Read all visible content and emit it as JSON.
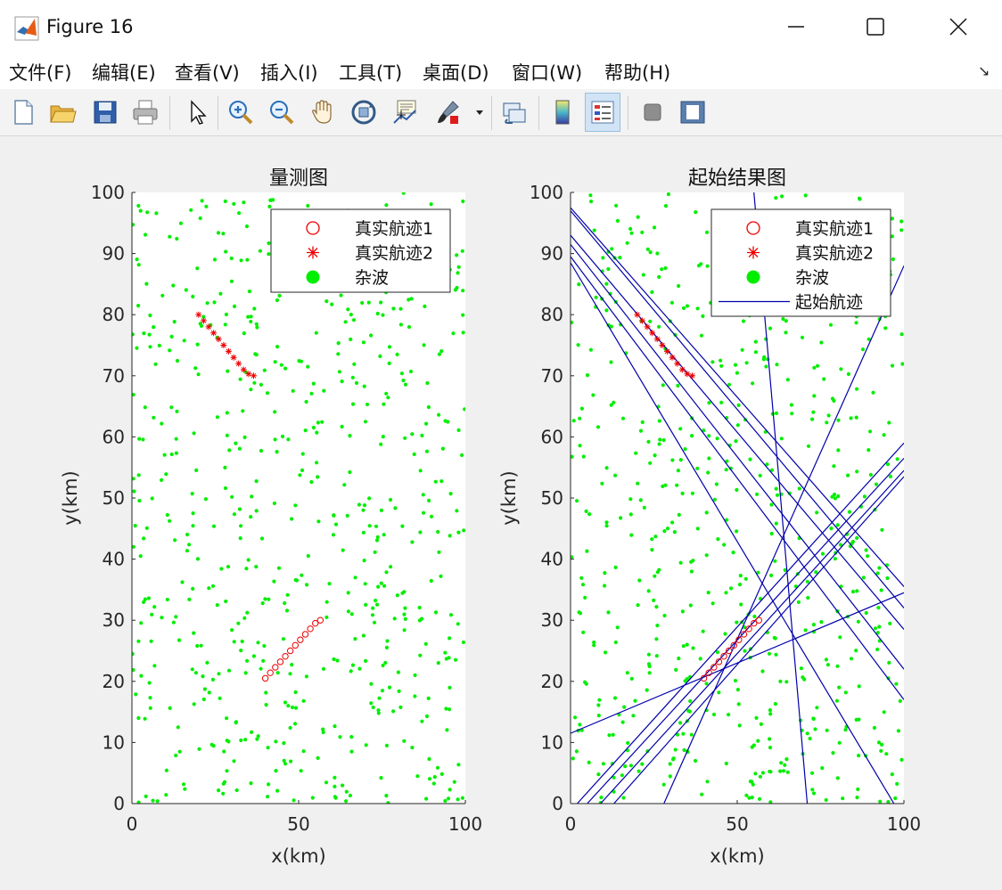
{
  "window": {
    "title": "Figure 16"
  },
  "menu": [
    "文件(F)",
    "编辑(E)",
    "查看(V)",
    "插入(I)",
    "工具(T)",
    "桌面(D)",
    "窗口(W)",
    "帮助(H)"
  ],
  "toolbar": {
    "buttons": [
      "new-figure-icon",
      "open-file-icon",
      "save-icon",
      "print-icon",
      "pointer-icon",
      "zoom-in-icon",
      "zoom-out-icon",
      "pan-icon",
      "rotate-3d-icon",
      "data-cursor-icon",
      "brush-icon",
      "link-plot-icon",
      "colorbar-icon",
      "legend-icon",
      "hide-plot-tools-icon",
      "show-plot-tools-icon"
    ],
    "active": "legend-icon"
  },
  "colors": {
    "clutter": "#00ee00",
    "track1": "#ee0000",
    "track2": "#ee0000",
    "start_track": "#0000aa"
  },
  "chart_data": [
    {
      "type": "scatter",
      "title": "量测图",
      "xlabel": "x(km)",
      "ylabel": "y(km)",
      "xlim": [
        0,
        100
      ],
      "ylim": [
        0,
        100
      ],
      "xticks": [
        "0",
        "50",
        "100"
      ],
      "yticks": [
        "0",
        "10",
        "20",
        "30",
        "40",
        "50",
        "60",
        "70",
        "80",
        "90",
        "100"
      ],
      "grid": false,
      "legend_position": "top-right",
      "series": [
        {
          "name": "真实航迹1",
          "marker": "circle",
          "x": [
            40,
            41.5,
            43,
            44.5,
            46,
            47.5,
            49,
            50.5,
            52,
            53.5,
            55,
            56.5
          ],
          "y": [
            20.5,
            21.4,
            22.3,
            23.2,
            24.1,
            25,
            25.9,
            26.8,
            27.7,
            28.6,
            29.5,
            30
          ]
        },
        {
          "name": "真实航迹2",
          "marker": "asterisk",
          "x": [
            20,
            21.5,
            23,
            24.5,
            26,
            27.5,
            29,
            30.5,
            32,
            33.5,
            35,
            36.5
          ],
          "y": [
            80,
            79,
            78,
            77,
            76,
            75,
            74,
            73,
            72,
            71,
            70.3,
            70
          ]
        },
        {
          "name": "杂波",
          "marker": "dot",
          "count": 600
        }
      ]
    },
    {
      "type": "scatter",
      "title": "起始结果图",
      "xlabel": "x(km)",
      "ylabel": "y(km)",
      "xlim": [
        0,
        100
      ],
      "ylim": [
        0,
        100
      ],
      "xticks": [
        "0",
        "50",
        "100"
      ],
      "yticks": [
        "0",
        "10",
        "20",
        "30",
        "40",
        "50",
        "60",
        "70",
        "80",
        "90",
        "100"
      ],
      "grid": false,
      "legend_position": "top-right",
      "series": [
        {
          "name": "真实航迹1",
          "marker": "circle",
          "x": [
            40,
            41.5,
            43,
            44.5,
            46,
            47.5,
            49,
            50.5,
            52,
            53.5,
            55,
            56.5
          ],
          "y": [
            20.5,
            21.4,
            22.3,
            23.2,
            24.1,
            25,
            25.9,
            26.8,
            27.7,
            28.6,
            29.5,
            30
          ]
        },
        {
          "name": "真实航迹2",
          "marker": "asterisk",
          "x": [
            20,
            21.5,
            23,
            24.5,
            26,
            27.5,
            29,
            30.5,
            32,
            33.5,
            35,
            36.5
          ],
          "y": [
            80,
            79,
            78,
            77,
            76,
            75,
            74,
            73,
            72,
            71,
            70.3,
            70
          ]
        },
        {
          "name": "杂波",
          "marker": "dot",
          "count": 600
        },
        {
          "name": "起始航迹",
          "marker": "line",
          "segments": [
            [
              [
                0,
                97.5
              ],
              [
                100,
                35.5
              ]
            ],
            [
              [
                0,
                97
              ],
              [
                100,
                32
              ]
            ],
            [
              [
                0,
                93
              ],
              [
                100,
                28.5
              ]
            ],
            [
              [
                0,
                91.5
              ],
              [
                100,
                22
              ]
            ],
            [
              [
                0,
                89.5
              ],
              [
                100,
                17
              ]
            ],
            [
              [
                0,
                88.5
              ],
              [
                97,
                0
              ]
            ],
            [
              [
                55,
                100
              ],
              [
                71,
                0
              ]
            ],
            [
              [
                28,
                0
              ],
              [
                100,
                88
              ]
            ],
            [
              [
                0,
                11.5
              ],
              [
                100,
                34.5
              ]
            ],
            [
              [
                2,
                0
              ],
              [
                100,
                59
              ]
            ],
            [
              [
                5,
                0
              ],
              [
                100,
                56.5
              ]
            ],
            [
              [
                9,
                0
              ],
              [
                100,
                54.5
              ]
            ],
            [
              [
                13,
                0
              ],
              [
                100,
                53.5
              ]
            ]
          ]
        }
      ]
    }
  ]
}
